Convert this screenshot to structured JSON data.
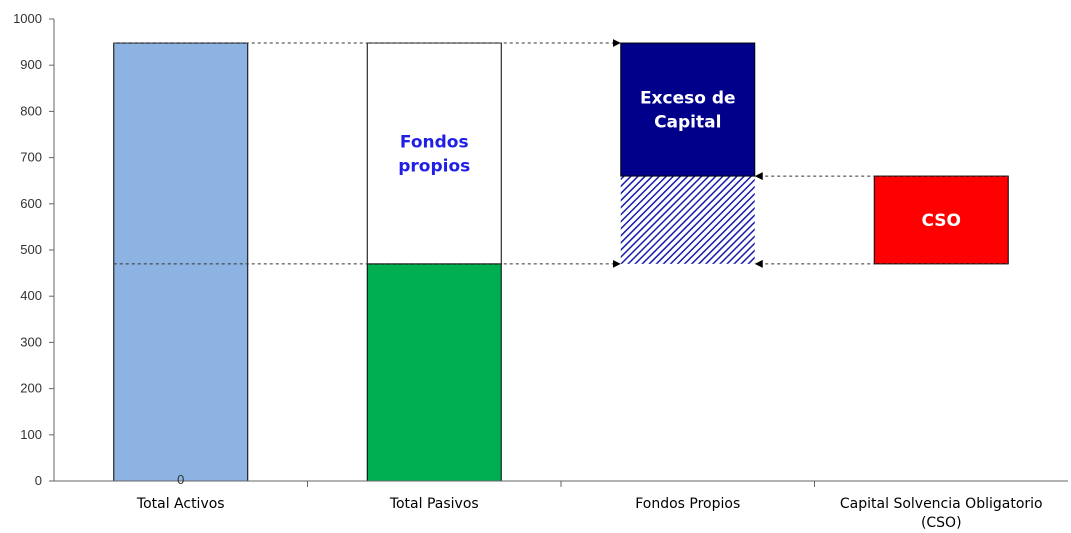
{
  "chart_data": {
    "type": "bar",
    "subtype": "waterfall",
    "title": "",
    "xlabel": "",
    "ylabel": "",
    "ylim": [
      0,
      1000
    ],
    "yticks": [
      0,
      100,
      200,
      300,
      400,
      500,
      600,
      700,
      800,
      900,
      1000
    ],
    "grid": false,
    "legend": "none",
    "categories": [
      [
        "Total Activos"
      ],
      [
        "Total Pasivos"
      ],
      [
        "Fondos Propios"
      ],
      [
        "Capital Solvencia Obligatorio",
        "(CSO)"
      ]
    ],
    "segments": [
      {
        "category": 0,
        "from": 0,
        "to": 948,
        "color": "#8DB3E2",
        "label": [],
        "fill": "solid"
      },
      {
        "category": 1,
        "from": 0,
        "to": 470,
        "color": "#00B050",
        "label": [],
        "fill": "solid"
      },
      {
        "category": 1,
        "from": 470,
        "to": 948,
        "color": "#FFFFFF",
        "label": [
          "Fondos",
          "propios"
        ],
        "labelColor": "#1F1FE6",
        "fill": "solid"
      },
      {
        "category": 2,
        "from": 470,
        "to": 660,
        "color": "#1A1AB0",
        "label": [],
        "fill": "hatch"
      },
      {
        "category": 2,
        "from": 660,
        "to": 948,
        "color": "#00008B",
        "label": [
          "Exceso de",
          "Capital"
        ],
        "labelColor": "#FFFFFF",
        "fill": "solid"
      },
      {
        "category": 3,
        "from": 470,
        "to": 660,
        "color": "#FF0000",
        "label": [
          "CSO"
        ],
        "labelColor": "#FFFFFF",
        "fill": "solid"
      }
    ],
    "data_labels": [
      {
        "category": 0,
        "value": 0,
        "text": "0"
      }
    ],
    "connectors": [
      {
        "value": 948,
        "from_category": 0,
        "to_category": 2
      },
      {
        "value": 470,
        "from_category": 0,
        "to_category": 2
      },
      {
        "value": 660,
        "from_category": 3,
        "to_category": 2
      },
      {
        "value": 470,
        "from_category": 3,
        "to_category": 2
      }
    ]
  }
}
